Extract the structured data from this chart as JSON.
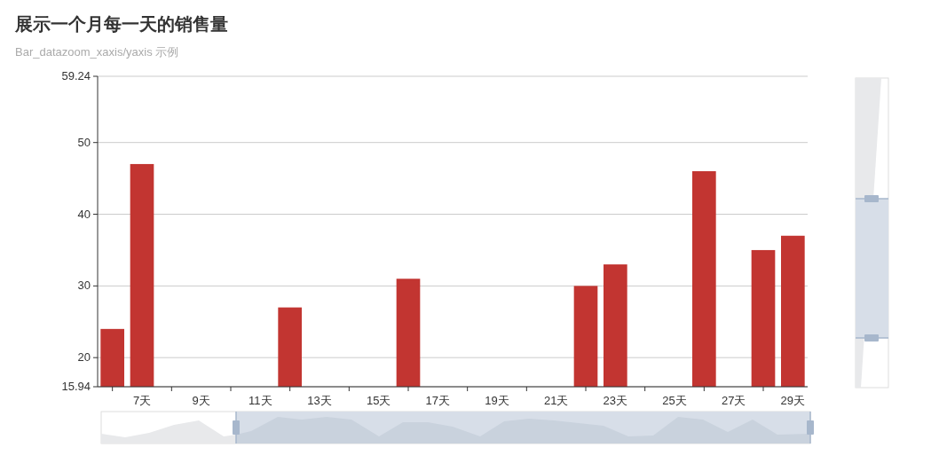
{
  "chart_data": {
    "type": "bar",
    "title": "展示一个月每一天的销售量",
    "subtitle": "Bar_datazoom_xaxis/yaxis 示例",
    "categories": [
      null,
      "7天",
      null,
      "9天",
      null,
      "11天",
      null,
      "13天",
      null,
      "15天",
      null,
      "17天",
      null,
      "19天",
      null,
      "21天",
      null,
      "23天",
      null,
      "25天",
      null,
      "27天",
      null,
      "29天"
    ],
    "series": [
      {
        "color": "#c23531",
        "values": [
          24,
          47,
          null,
          null,
          null,
          null,
          27,
          null,
          null,
          null,
          31,
          null,
          null,
          null,
          null,
          null,
          30,
          33,
          null,
          null,
          46,
          null,
          35,
          37
        ]
      }
    ],
    "ylim": [
      15.94,
      59.24
    ],
    "yticks": [
      15.94,
      20,
      30,
      40,
      50,
      59.24
    ],
    "grid": "y"
  }
}
